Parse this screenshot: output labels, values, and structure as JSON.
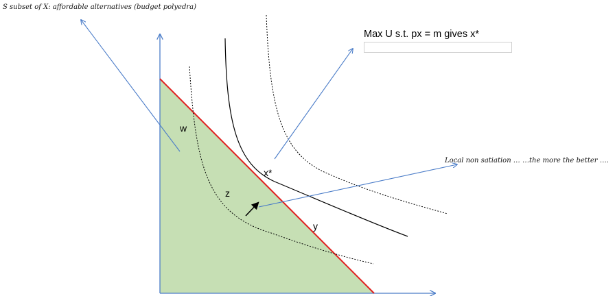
{
  "caption": "S subset of X: affordable alternatives (budget polyedra)",
  "max_label": "Max U s.t. px = m gives x*",
  "lns_label": "Local non satiation … …the more the better ….",
  "points": {
    "w": "w",
    "z": "z",
    "x_star": "x*",
    "y": "y"
  },
  "colors": {
    "budget_set_fill": "#c6dfb4",
    "budget_line": "#e02020",
    "axes": "#4a7cc8",
    "arrows": "#4a7cc8",
    "indifference": "#000000"
  }
}
